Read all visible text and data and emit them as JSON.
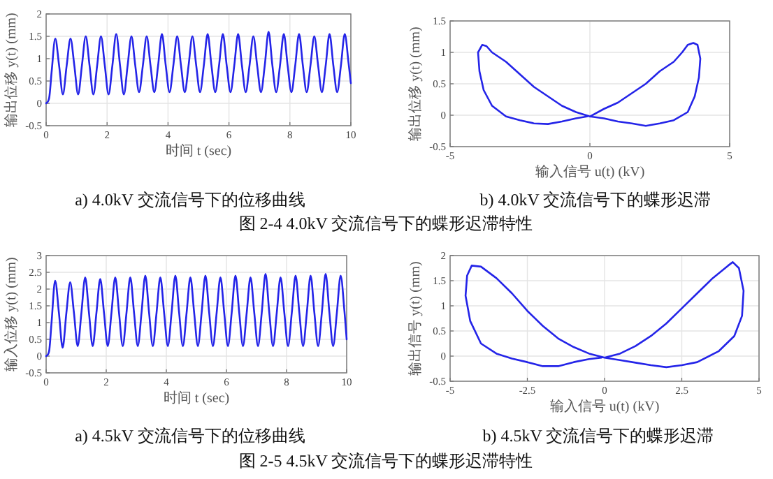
{
  "chart_data": [
    {
      "type": "line",
      "title": "a) 4.0kV 交流信号下的位移曲线",
      "xlabel": "时间 t (sec)",
      "ylabel": "输出位移 y(t) (mm)",
      "xlim": [
        0,
        10
      ],
      "xticks": [
        0,
        2,
        4,
        6,
        8,
        10
      ],
      "ylim": [
        -0.5,
        2
      ],
      "yticks": [
        -0.5,
        0,
        0.5,
        1,
        1.5,
        2
      ],
      "grid": true,
      "line_style": "solid",
      "x": [
        0,
        0.1,
        0.18,
        0.3,
        0.425,
        0.55,
        0.675,
        0.8,
        0.925,
        1.05,
        1.175,
        1.3,
        1.425,
        1.55,
        1.675,
        1.8,
        1.925,
        2.05,
        2.175,
        2.3,
        2.425,
        2.55,
        2.675,
        2.8,
        2.925,
        3.05,
        3.175,
        3.3,
        3.425,
        3.55,
        3.675,
        3.8,
        3.925,
        4.05,
        4.175,
        4.3,
        4.425,
        4.55,
        4.675,
        4.8,
        4.925,
        5.05,
        5.175,
        5.3,
        5.425,
        5.55,
        5.675,
        5.8,
        5.925,
        6.05,
        6.175,
        6.3,
        6.425,
        6.55,
        6.675,
        6.8,
        6.925,
        7.05,
        7.175,
        7.3,
        7.425,
        7.55,
        7.675,
        7.8,
        7.925,
        8.05,
        8.175,
        8.3,
        8.425,
        8.55,
        8.675,
        8.8,
        8.925,
        9.05,
        9.175,
        9.3,
        9.425,
        9.55,
        9.675,
        9.8,
        9.925,
        10
      ],
      "series": [
        {
          "color": "#2424e8",
          "values": [
            0,
            0.12,
            0.7,
            1.45,
            0.85,
            0.2,
            0.85,
            1.45,
            0.85,
            0.2,
            0.85,
            1.5,
            0.85,
            0.2,
            0.85,
            1.5,
            0.85,
            0.2,
            0.85,
            1.55,
            0.85,
            0.2,
            0.85,
            1.5,
            0.85,
            0.25,
            0.85,
            1.5,
            0.85,
            0.25,
            0.85,
            1.55,
            0.85,
            0.25,
            0.85,
            1.5,
            0.85,
            0.25,
            0.85,
            1.5,
            0.85,
            0.25,
            0.85,
            1.55,
            0.85,
            0.25,
            0.85,
            1.55,
            0.85,
            0.25,
            0.85,
            1.55,
            0.85,
            0.25,
            0.85,
            1.5,
            0.85,
            0.25,
            0.85,
            1.6,
            0.85,
            0.25,
            0.85,
            1.55,
            0.85,
            0.25,
            0.85,
            1.55,
            0.85,
            0.25,
            0.85,
            1.5,
            0.85,
            0.25,
            0.85,
            1.55,
            0.85,
            0.25,
            0.85,
            1.55,
            0.9,
            0.45
          ]
        }
      ]
    },
    {
      "type": "line",
      "title": "b) 4.0kV 交流信号下的蝶形迟滞",
      "xlabel": "输入信号 u(t) (kV)",
      "ylabel": "输出位移 y(t) (mm)",
      "xlim": [
        -5,
        5
      ],
      "xticks": [
        -5,
        0,
        5
      ],
      "ylim": [
        -0.5,
        1.5
      ],
      "yticks": [
        -0.5,
        0,
        0.5,
        1,
        1.5
      ],
      "grid": true,
      "line_style": "solid",
      "annotations": [
        "图 2-4 4.0kV 交流信号下的蝶形迟滞特性"
      ],
      "series": [
        {
          "color": "#2424e8",
          "x": [
            0,
            0.5,
            1,
            1.5,
            2,
            2.5,
            3,
            3.3,
            3.5,
            3.7,
            3.85,
            3.95,
            3.9,
            3.75,
            3.5,
            3,
            2.5,
            2,
            1.5,
            1,
            0.5,
            0,
            -0.5,
            -1,
            -1.5,
            -2,
            -2.5,
            -3,
            -3.5,
            -3.7,
            -3.85,
            -4,
            -3.95,
            -3.8,
            -3.5,
            -3,
            -2.5,
            -2,
            -1.5,
            -1,
            -0.5,
            -0.1
          ],
          "values": [
            -0.02,
            0.1,
            0.2,
            0.35,
            0.5,
            0.7,
            0.85,
            1.0,
            1.12,
            1.15,
            1.12,
            0.9,
            0.6,
            0.3,
            0.05,
            -0.08,
            -0.13,
            -0.17,
            -0.13,
            -0.1,
            -0.05,
            -0.02,
            0.05,
            0.15,
            0.3,
            0.45,
            0.65,
            0.85,
            1.0,
            1.1,
            1.12,
            1.0,
            0.7,
            0.4,
            0.15,
            -0.02,
            -0.08,
            -0.13,
            -0.14,
            -0.1,
            -0.05,
            -0.02
          ]
        }
      ]
    },
    {
      "type": "line",
      "title": "a) 4.5kV 交流信号下的位移曲线",
      "xlabel": "时间 t (sec)",
      "ylabel": "输入位移 y(t) (mm)",
      "xlim": [
        0,
        10
      ],
      "xticks": [
        0,
        2,
        4,
        6,
        8,
        10
      ],
      "ylim": [
        -0.5,
        3
      ],
      "yticks": [
        -0.5,
        0,
        0.5,
        1,
        1.5,
        2,
        2.5,
        3
      ],
      "grid": true,
      "line_style": "solid",
      "x": [
        0,
        0.1,
        0.18,
        0.3,
        0.425,
        0.55,
        0.675,
        0.8,
        0.925,
        1.05,
        1.175,
        1.3,
        1.425,
        1.55,
        1.675,
        1.8,
        1.925,
        2.05,
        2.175,
        2.3,
        2.425,
        2.55,
        2.675,
        2.8,
        2.925,
        3.05,
        3.175,
        3.3,
        3.425,
        3.55,
        3.675,
        3.8,
        3.925,
        4.05,
        4.175,
        4.3,
        4.425,
        4.55,
        4.675,
        4.8,
        4.925,
        5.05,
        5.175,
        5.3,
        5.425,
        5.55,
        5.675,
        5.8,
        5.925,
        6.05,
        6.175,
        6.3,
        6.425,
        6.55,
        6.675,
        6.8,
        6.925,
        7.05,
        7.175,
        7.3,
        7.425,
        7.55,
        7.675,
        7.8,
        7.925,
        8.05,
        8.175,
        8.3,
        8.425,
        8.55,
        8.675,
        8.8,
        8.925,
        9.05,
        9.175,
        9.3,
        9.425,
        9.55,
        9.675,
        9.8,
        9.925,
        10
      ],
      "series": [
        {
          "color": "#2424e8",
          "values": [
            0,
            0.15,
            1.0,
            2.25,
            1.3,
            0.25,
            1.3,
            2.2,
            1.3,
            0.3,
            1.3,
            2.35,
            1.3,
            0.3,
            1.3,
            2.3,
            1.3,
            0.3,
            1.3,
            2.35,
            1.3,
            0.3,
            1.3,
            2.35,
            1.3,
            0.3,
            1.3,
            2.4,
            1.3,
            0.3,
            1.3,
            2.35,
            1.3,
            0.3,
            1.3,
            2.4,
            1.3,
            0.3,
            1.3,
            2.35,
            1.3,
            0.3,
            1.3,
            2.4,
            1.3,
            0.3,
            1.3,
            2.35,
            1.3,
            0.3,
            1.3,
            2.4,
            1.3,
            0.3,
            1.3,
            2.35,
            1.3,
            0.3,
            1.3,
            2.45,
            1.3,
            0.3,
            1.3,
            2.35,
            1.3,
            0.3,
            1.3,
            2.4,
            1.3,
            0.3,
            1.3,
            2.4,
            1.3,
            0.3,
            1.3,
            2.45,
            1.3,
            0.3,
            1.3,
            2.4,
            1.35,
            0.5
          ]
        }
      ]
    },
    {
      "type": "line",
      "title": "b) 4.5kV 交流信号下的蝶形迟滞",
      "xlabel": "输入信号 u(t) (kV)",
      "ylabel": "输出信号 y(t) (mm)",
      "xlim": [
        -5,
        5
      ],
      "xticks": [
        -5,
        -2.5,
        0,
        2.5,
        5
      ],
      "ylim": [
        -0.5,
        2
      ],
      "yticks": [
        -0.5,
        0,
        0.5,
        1,
        1.5,
        2
      ],
      "grid": true,
      "line_style": "solid",
      "annotations": [
        "图 2-5 4.5kV 交流信号下的蝶形迟滞特性"
      ],
      "series": [
        {
          "color": "#2424e8",
          "x": [
            0,
            0.5,
            1,
            1.5,
            2,
            2.5,
            3,
            3.5,
            4,
            4.15,
            4.35,
            4.5,
            4.45,
            4.2,
            3.7,
            3,
            2.5,
            2,
            1.5,
            1,
            0.5,
            0,
            -0.5,
            -1,
            -1.5,
            -2,
            -2.5,
            -3,
            -3.5,
            -4,
            -4.3,
            -4.45,
            -4.5,
            -4.35,
            -4,
            -3.5,
            -3,
            -2.5,
            -2,
            -1.5,
            -1,
            -0.5,
            -0.1
          ],
          "values": [
            -0.03,
            0.05,
            0.2,
            0.4,
            0.65,
            0.95,
            1.25,
            1.55,
            1.8,
            1.87,
            1.75,
            1.3,
            0.8,
            0.4,
            0.1,
            -0.12,
            -0.18,
            -0.22,
            -0.18,
            -0.13,
            -0.08,
            -0.03,
            0.05,
            0.18,
            0.35,
            0.6,
            0.9,
            1.25,
            1.55,
            1.78,
            1.8,
            1.6,
            1.2,
            0.7,
            0.25,
            0.05,
            -0.05,
            -0.12,
            -0.2,
            -0.2,
            -0.12,
            -0.06,
            -0.03
          ]
        }
      ]
    }
  ]
}
